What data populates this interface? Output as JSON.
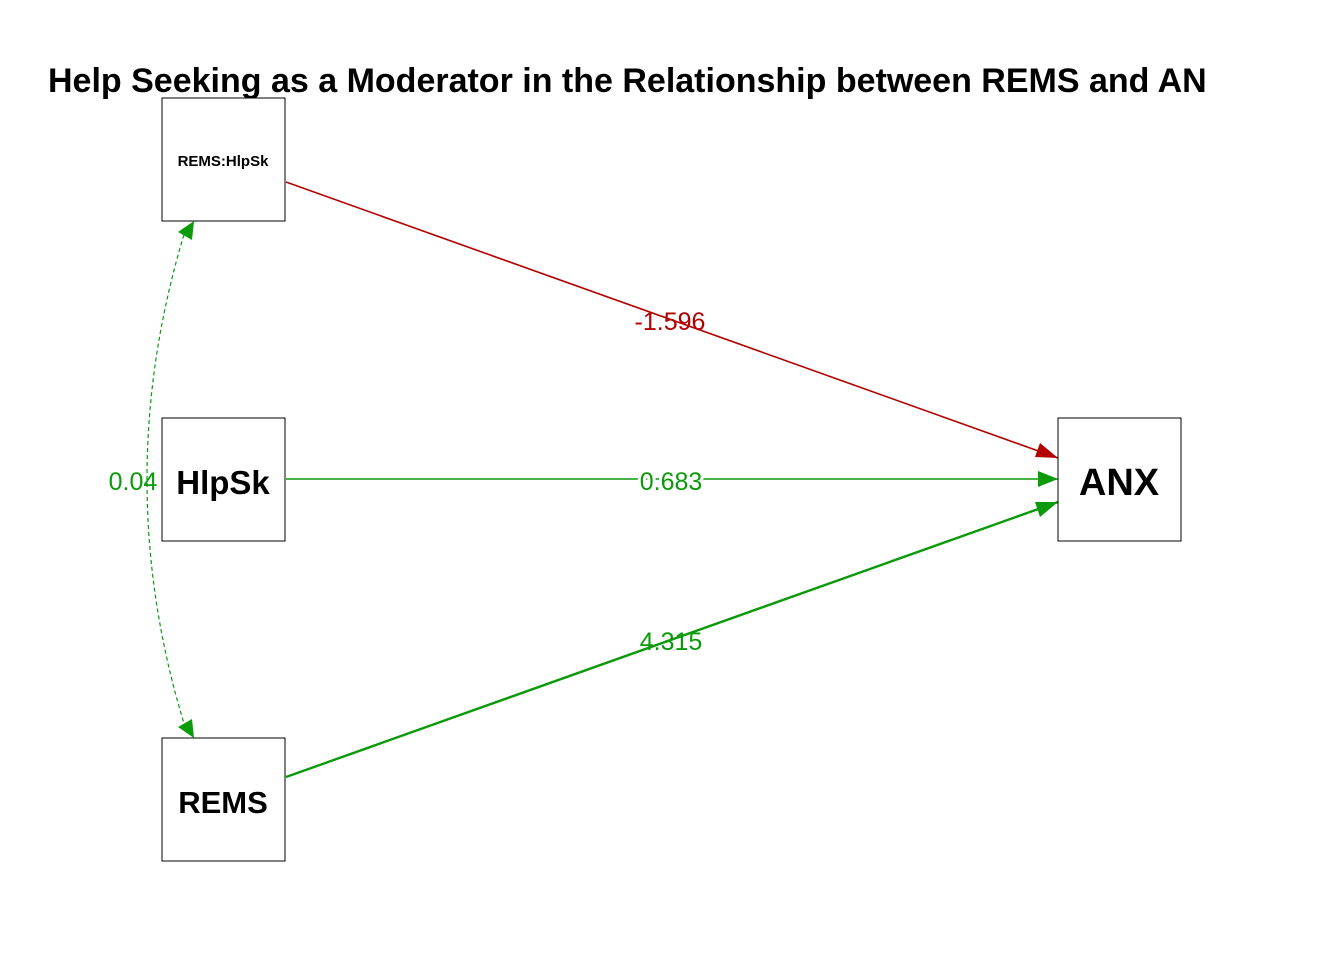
{
  "title": "Help Seeking as a Moderator in the Relationship between REMS and AN",
  "nodes": {
    "interaction": "REMS:HlpSk",
    "helpseeking": "HlpSk",
    "rems": "REMS",
    "anx": "ANX"
  },
  "paths": [
    {
      "from": "REMS:HlpSk",
      "to": "ANX",
      "estimate": "-1.596",
      "sign": "negative"
    },
    {
      "from": "HlpSk",
      "to": "ANX",
      "estimate": "0.683",
      "sign": "positive"
    },
    {
      "from": "REMS",
      "to": "ANX",
      "estimate": "4.315",
      "sign": "positive"
    }
  ],
  "covariance": {
    "between": [
      "REMS:HlpSk",
      "REMS"
    ],
    "estimate": "0.04",
    "style": "dashed"
  },
  "colors": {
    "positive": "#0a9a0a",
    "negative": "#b30000",
    "box_stroke": "#000000"
  }
}
